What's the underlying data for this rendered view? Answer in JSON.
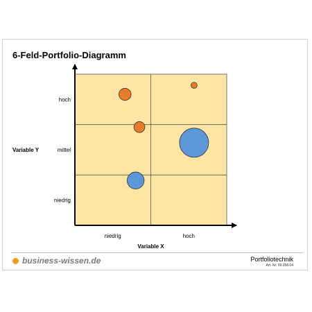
{
  "page": {
    "title": "6-Feld-Portfolio-Diagramm"
  },
  "chart_data": {
    "type": "scatter",
    "subtype": "bubble-portfolio",
    "title": "6-Feld-Portfolio-Diagramm",
    "xlabel": "Variable X",
    "ylabel": "Variable Y",
    "x_categories": [
      "niedrig",
      "hoch"
    ],
    "y_categories": [
      "niedrig",
      "mittel",
      "hoch"
    ],
    "xlim": [
      0,
      2
    ],
    "ylim": [
      0,
      3
    ],
    "grid": true,
    "colors": {
      "cell_fill": "#fde6a4",
      "grid_line": "#555555",
      "axis": "#000000",
      "orange": "#e87a2c",
      "blue": "#5b97d9"
    },
    "bubbles": [
      {
        "x": 0.66,
        "y": 2.6,
        "size": 0.1,
        "color": "orange"
      },
      {
        "x": 1.57,
        "y": 2.78,
        "size": 0.05,
        "color": "orange"
      },
      {
        "x": 0.85,
        "y": 1.95,
        "size": 0.09,
        "color": "orange"
      },
      {
        "x": 1.57,
        "y": 1.64,
        "size": 0.24,
        "color": "blue"
      },
      {
        "x": 0.8,
        "y": 0.89,
        "size": 0.14,
        "color": "blue"
      }
    ]
  },
  "footer": {
    "brand": "business-wissen.de",
    "doc_title": "Portfoliotechnik",
    "art_nr": "Art.-Nr. 99.058.04"
  }
}
